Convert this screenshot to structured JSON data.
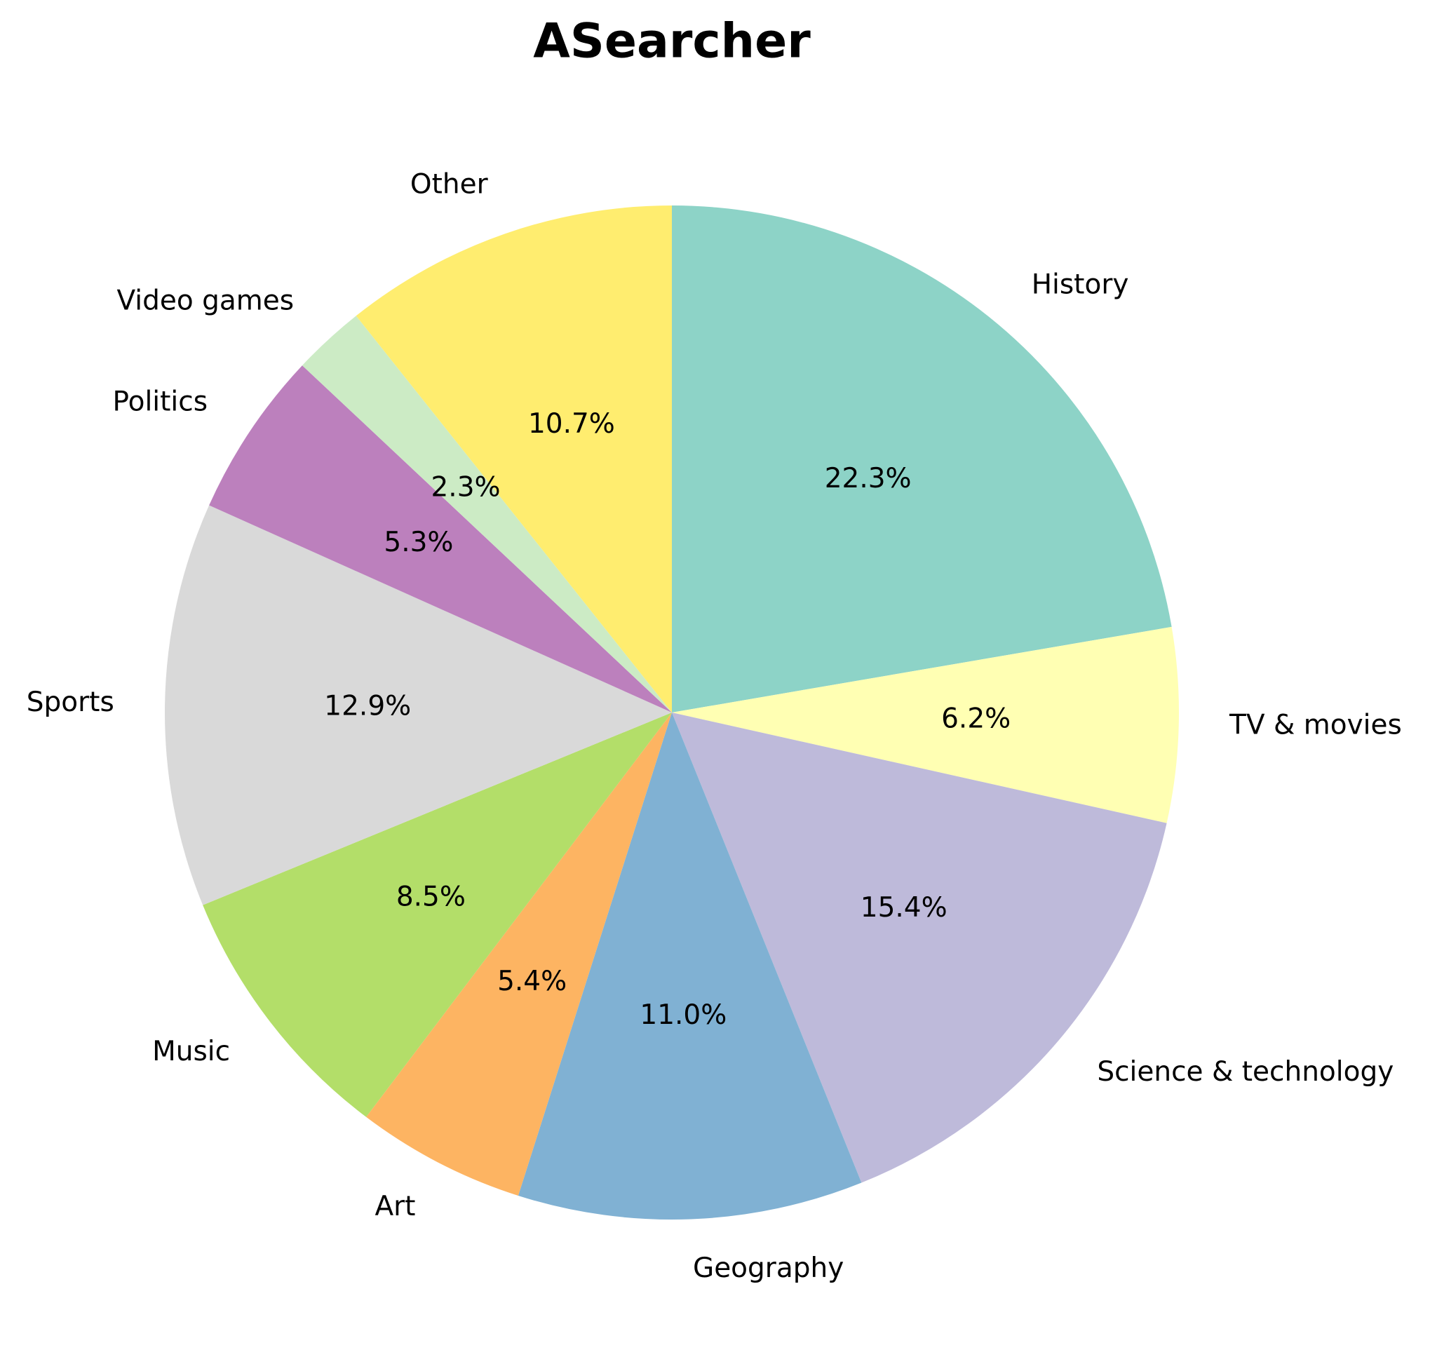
{
  "chart_data": {
    "type": "pie",
    "title": "ASearcher",
    "categories": [
      "History",
      "TV & movies",
      "Science & technology",
      "Geography",
      "Art",
      "Music",
      "Sports",
      "Politics",
      "Video games",
      "Other"
    ],
    "values": [
      22.3,
      6.2,
      15.4,
      11.0,
      5.4,
      8.5,
      12.9,
      5.3,
      2.3,
      10.7
    ],
    "value_labels": [
      "22.3%",
      "6.2%",
      "15.4%",
      "11.0%",
      "5.4%",
      "8.5%",
      "12.9%",
      "5.3%",
      "2.3%",
      "10.7%"
    ],
    "colors": [
      "#8dd3c7",
      "#ffffb3",
      "#bebada",
      "#80b1d3",
      "#fdb462",
      "#b3de69",
      "#d9d9d9",
      "#bc80bd",
      "#ccebc5",
      "#ffed6f"
    ],
    "start": "top",
    "direction": "clockwise"
  }
}
